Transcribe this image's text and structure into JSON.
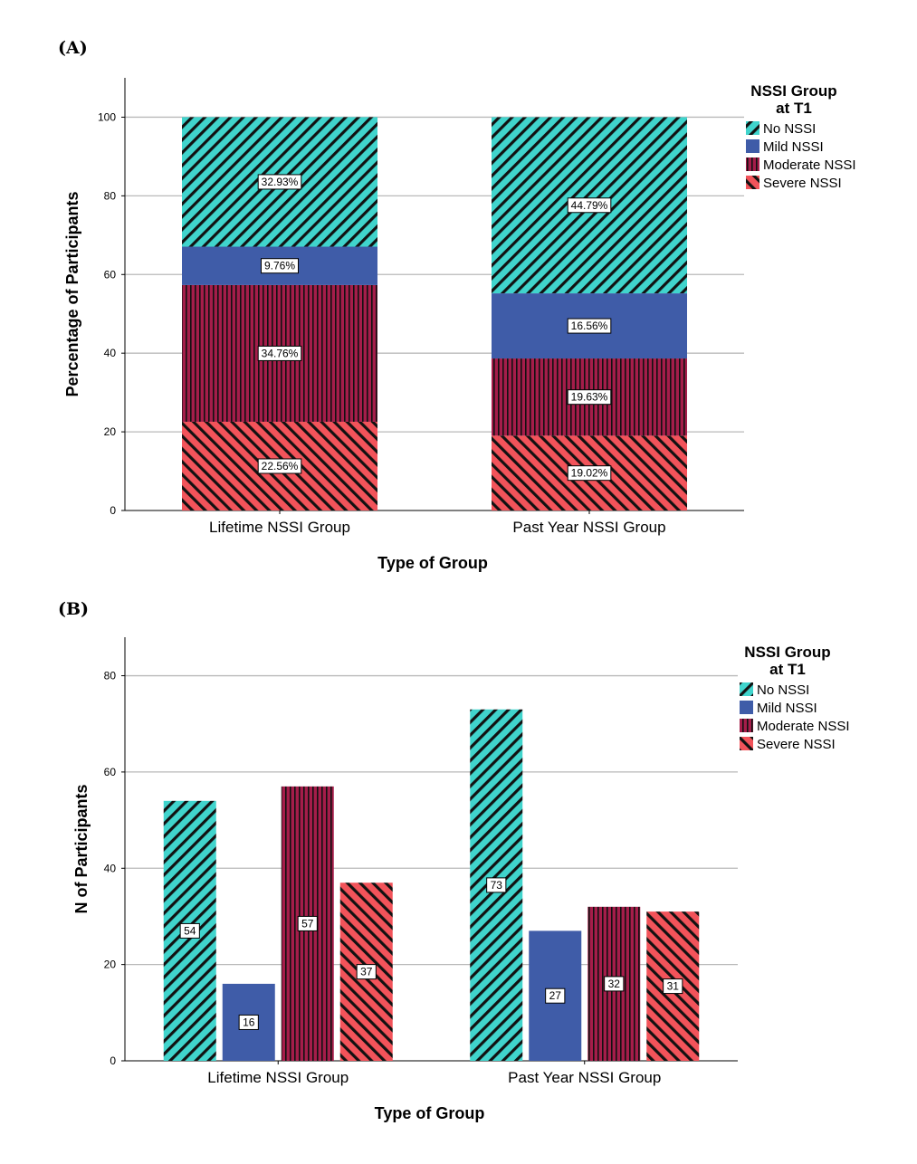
{
  "panels": {
    "a_label": "(A)",
    "b_label": "(B)"
  },
  "colors": {
    "no_nssi": "#40d4cc",
    "mild_nssi": "#3f5ca8",
    "moderate_nssi": "#a51d4a",
    "severe_nssi": "#f2535a",
    "hatch": "#111111",
    "grid": "#b9b9b9"
  },
  "legend_title_lines": [
    "NSSI Group",
    "at T1"
  ],
  "chart_data": [
    {
      "id": "A",
      "type": "bar",
      "stacked": true,
      "categories": [
        "Lifetime NSSI Group",
        "Past Year NSSI Group"
      ],
      "series": [
        {
          "name": "Severe NSSI",
          "values": [
            22.56,
            19.02
          ],
          "labels": [
            "22.56%",
            "19.02%"
          ],
          "pattern": "diag-down",
          "color_key": "severe_nssi"
        },
        {
          "name": "Moderate NSSI",
          "values": [
            34.76,
            19.63
          ],
          "labels": [
            "34.76%",
            "19.63%"
          ],
          "pattern": "vertical",
          "color_key": "moderate_nssi"
        },
        {
          "name": "Mild NSSI",
          "values": [
            9.76,
            16.56
          ],
          "labels": [
            "9.76%",
            "16.56%"
          ],
          "pattern": "solid",
          "color_key": "mild_nssi"
        },
        {
          "name": "No NSSI",
          "values": [
            32.93,
            44.79
          ],
          "labels": [
            "32.93%",
            "44.79%"
          ],
          "pattern": "diag-up",
          "color_key": "no_nssi"
        }
      ],
      "legend_order": [
        "No NSSI",
        "Mild NSSI",
        "Moderate NSSI",
        "Severe NSSI"
      ],
      "xlabel": "Type of Group",
      "ylabel": "Percentage of Participants",
      "ylim": [
        0,
        110
      ],
      "yticks": [
        0,
        20,
        40,
        60,
        80,
        100
      ],
      "grid": true,
      "legend_position": "right"
    },
    {
      "id": "B",
      "type": "bar",
      "stacked": false,
      "categories": [
        "Lifetime NSSI Group",
        "Past Year NSSI Group"
      ],
      "series": [
        {
          "name": "No NSSI",
          "values": [
            54,
            73
          ],
          "labels": [
            "54",
            "73"
          ],
          "pattern": "diag-up",
          "color_key": "no_nssi"
        },
        {
          "name": "Mild NSSI",
          "values": [
            16,
            27
          ],
          "labels": [
            "16",
            "27"
          ],
          "pattern": "solid",
          "color_key": "mild_nssi"
        },
        {
          "name": "Moderate NSSI",
          "values": [
            57,
            32
          ],
          "labels": [
            "57",
            "32"
          ],
          "pattern": "vertical",
          "color_key": "moderate_nssi"
        },
        {
          "name": "Severe NSSI",
          "values": [
            37,
            31
          ],
          "labels": [
            "37",
            "31"
          ],
          "pattern": "diag-down",
          "color_key": "severe_nssi"
        }
      ],
      "legend_order": [
        "No NSSI",
        "Mild NSSI",
        "Moderate NSSI",
        "Severe NSSI"
      ],
      "xlabel": "Type of Group",
      "ylabel": "N of Participants",
      "ylim": [
        0,
        88
      ],
      "yticks": [
        0,
        20,
        40,
        60,
        80
      ],
      "grid": true,
      "legend_position": "right"
    }
  ]
}
